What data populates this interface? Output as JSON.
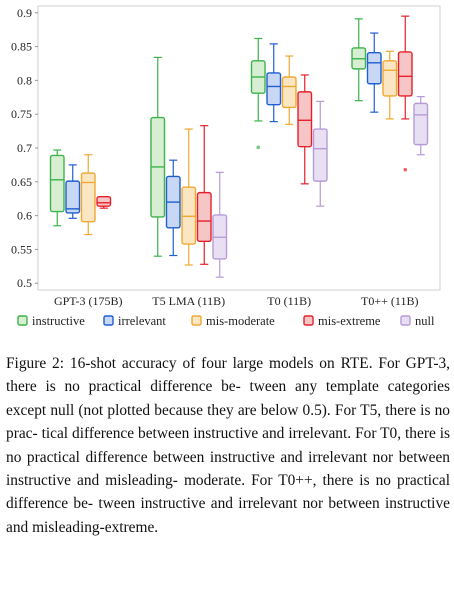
{
  "chart_data": {
    "type": "box",
    "categories": [
      "GPT-3 (175B)",
      "T5 LMA (11B)",
      "T0 (11B)",
      "T0++ (11B)"
    ],
    "ylim": [
      0.49,
      0.91
    ],
    "yticks": [
      "0.5",
      "0.55",
      "0.6",
      "0.65",
      "0.7",
      "0.75",
      "0.8",
      "0.85",
      "0.9"
    ],
    "ytick_values": [
      0.5,
      0.55,
      0.6,
      0.65,
      0.7,
      0.75,
      0.8,
      0.85,
      0.9
    ],
    "grid": false,
    "legend_position": "bottom",
    "series": [
      {
        "name": "instructive",
        "color": "#3cb44b",
        "fill": "#d7eed2",
        "boxes": [
          {
            "min": 0.585,
            "q1": 0.606,
            "median": 0.653,
            "q3": 0.689,
            "max": 0.697,
            "outliers": []
          },
          {
            "min": 0.54,
            "q1": 0.598,
            "median": 0.672,
            "q3": 0.745,
            "max": 0.834,
            "outliers": []
          },
          {
            "min": 0.74,
            "q1": 0.781,
            "median": 0.805,
            "q3": 0.829,
            "max": 0.862,
            "outliers": [
              0.701
            ]
          },
          {
            "min": 0.77,
            "q1": 0.817,
            "median": 0.832,
            "q3": 0.848,
            "max": 0.891,
            "outliers": []
          }
        ]
      },
      {
        "name": "irrelevant",
        "color": "#1f5fd1",
        "fill": "#c8d7f3",
        "boxes": [
          {
            "min": 0.596,
            "q1": 0.604,
            "median": 0.61,
            "q3": 0.651,
            "max": 0.675,
            "outliers": []
          },
          {
            "min": 0.541,
            "q1": 0.582,
            "median": 0.62,
            "q3": 0.658,
            "max": 0.682,
            "outliers": []
          },
          {
            "min": 0.739,
            "q1": 0.764,
            "median": 0.791,
            "q3": 0.811,
            "max": 0.854,
            "outliers": []
          },
          {
            "min": 0.753,
            "q1": 0.795,
            "median": 0.826,
            "q3": 0.841,
            "max": 0.87,
            "outliers": []
          }
        ]
      },
      {
        "name": "mis-moderate",
        "color": "#f0a830",
        "fill": "#fbe6c4",
        "boxes": [
          {
            "min": 0.572,
            "q1": 0.591,
            "median": 0.649,
            "q3": 0.663,
            "max": 0.69,
            "outliers": []
          },
          {
            "min": 0.527,
            "q1": 0.558,
            "median": 0.599,
            "q3": 0.642,
            "max": 0.728,
            "outliers": []
          },
          {
            "min": 0.735,
            "q1": 0.76,
            "median": 0.791,
            "q3": 0.805,
            "max": 0.836,
            "outliers": []
          },
          {
            "min": 0.743,
            "q1": 0.777,
            "median": 0.815,
            "q3": 0.829,
            "max": 0.843,
            "outliers": []
          }
        ]
      },
      {
        "name": "mis-extreme",
        "color": "#e6202b",
        "fill": "#f6c6c6",
        "boxes": [
          {
            "min": 0.611,
            "q1": 0.614,
            "median": 0.619,
            "q3": 0.628,
            "max": 0.628,
            "outliers": []
          },
          {
            "min": 0.528,
            "q1": 0.562,
            "median": 0.592,
            "q3": 0.634,
            "max": 0.733,
            "outliers": []
          },
          {
            "min": 0.647,
            "q1": 0.702,
            "median": 0.741,
            "q3": 0.783,
            "max": 0.808,
            "outliers": []
          },
          {
            "min": 0.743,
            "q1": 0.777,
            "median": 0.806,
            "q3": 0.842,
            "max": 0.895,
            "outliers": [
              0.668
            ]
          }
        ]
      },
      {
        "name": "null",
        "color": "#b79bd6",
        "fill": "#e9dff3",
        "boxes": [
          null,
          {
            "min": 0.509,
            "q1": 0.536,
            "median": 0.568,
            "q3": 0.601,
            "max": 0.664,
            "outliers": []
          },
          {
            "min": 0.614,
            "q1": 0.651,
            "median": 0.699,
            "q3": 0.728,
            "max": 0.769,
            "outliers": []
          },
          {
            "min": 0.69,
            "q1": 0.705,
            "median": 0.749,
            "q3": 0.766,
            "max": 0.776,
            "outliers": []
          }
        ]
      }
    ]
  },
  "caption": [
    "Figure 2: 16-shot accuracy of four large models on",
    "RTE. For GPT-3, there is no practical difference be-",
    "tween any template categories except null (not plotted",
    "because they are below 0.5). For T5, there is no prac-",
    "tical difference between instructive and irrelevant. For",
    "T0, there is no practical difference between instructive",
    "and irrelevant nor between instructive and misleading-",
    "moderate. For T0++, there is no practical difference be-",
    "tween instructive and irrelevant nor between instructive",
    "and misleading-extreme."
  ]
}
